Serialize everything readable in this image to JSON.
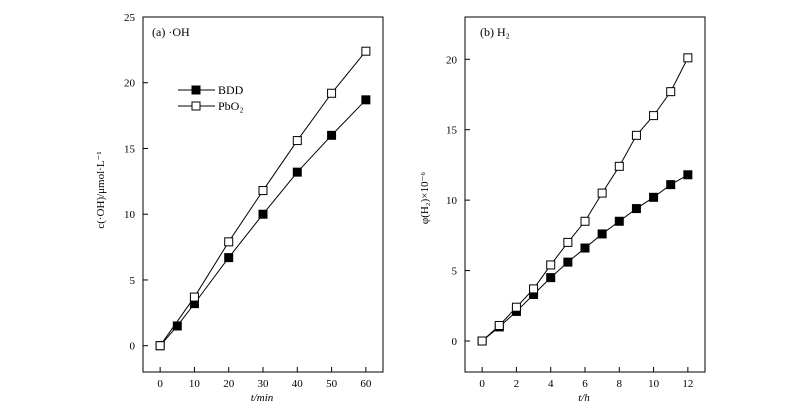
{
  "chart_data": [
    {
      "type": "line",
      "panel_label": "(a)  ·OH",
      "xlabel": "t/min",
      "ylabel": "c(·OH)/μmol·L⁻¹",
      "xlim": [
        -5,
        65
      ],
      "ylim": [
        -2,
        25
      ],
      "x_ticks": [
        0,
        10,
        20,
        30,
        40,
        50,
        60
      ],
      "y_ticks": [
        0,
        5,
        10,
        15,
        20,
        25
      ],
      "grid": false,
      "legend_placement": "top-left",
      "series": [
        {
          "name": "BDD",
          "marker": "filled-square",
          "color": "#000000",
          "x": [
            0,
            5,
            10,
            20,
            30,
            40,
            50,
            60
          ],
          "values": [
            0,
            1.5,
            3.2,
            6.7,
            10.0,
            13.2,
            16.0,
            18.7
          ]
        },
        {
          "name": "PbO₂",
          "marker": "open-square",
          "color": "#000000",
          "x": [
            0,
            10,
            20,
            30,
            40,
            50,
            60
          ],
          "values": [
            0,
            3.7,
            7.9,
            11.8,
            15.6,
            19.2,
            22.4
          ]
        }
      ]
    },
    {
      "type": "line",
      "panel_label": "(b) H₂",
      "xlabel": "t/h",
      "ylabel": "φ(H₂)×10⁻⁶",
      "xlim": [
        -1,
        13
      ],
      "ylim": [
        -2.2,
        23
      ],
      "x_ticks": [
        0,
        2,
        4,
        6,
        8,
        10,
        12
      ],
      "y_ticks": [
        0,
        5,
        10,
        15,
        20
      ],
      "grid": false,
      "series": [
        {
          "name": "BDD",
          "marker": "filled-square",
          "color": "#000000",
          "x": [
            0,
            1,
            2,
            3,
            4,
            5,
            6,
            7,
            8,
            9,
            10,
            11,
            12
          ],
          "values": [
            0,
            1.0,
            2.1,
            3.3,
            4.5,
            5.6,
            6.6,
            7.6,
            8.5,
            9.4,
            10.2,
            11.1,
            11.8
          ]
        },
        {
          "name": "PbO₂",
          "marker": "open-square",
          "color": "#000000",
          "x": [
            0,
            1,
            2,
            3,
            4,
            5,
            6,
            7,
            8,
            9,
            10,
            11,
            12
          ],
          "values": [
            0,
            1.1,
            2.4,
            3.7,
            5.4,
            7.0,
            8.5,
            10.5,
            12.4,
            14.6,
            16.0,
            17.7,
            20.1
          ]
        }
      ]
    }
  ]
}
